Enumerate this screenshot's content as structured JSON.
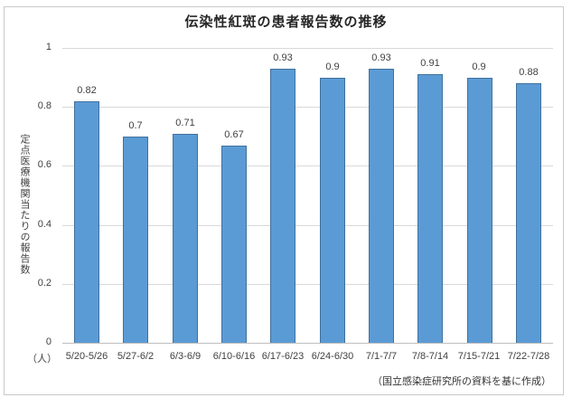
{
  "title": "伝染性紅斑の患者報告数の推移",
  "unit_label": "（人）",
  "footnote": "（国立感染症研究所の資料を基に作成）",
  "colors": {
    "bar_fill": "#5B9BD5",
    "bar_border": "#41719C",
    "gridline": "#D9D9D9",
    "axis_line": "#BFBFBF",
    "frame_border": "#C9C9C9",
    "title_text": "#262626",
    "label_text": "#404040"
  },
  "chart_data": {
    "type": "bar",
    "title": "伝染性紅斑の患者報告数の推移",
    "categories": [
      "5/20-5/26",
      "5/27-6/2",
      "6/3-6/9",
      "6/10-6/16",
      "6/17-6/23",
      "6/24-6/30",
      "7/1-7/7",
      "7/8-7/14",
      "7/15-7/21",
      "7/22-7/28"
    ],
    "values": [
      0.82,
      0.7,
      0.71,
      0.67,
      0.93,
      0.9,
      0.93,
      0.91,
      0.9,
      0.88
    ],
    "ylabel": "定点医療機関当たりの報告数",
    "xlabel": "（人）",
    "ylim": [
      0,
      1
    ],
    "yticks": [
      0,
      0.2,
      0.4,
      0.6,
      0.8,
      1
    ],
    "grid": true,
    "legend": false,
    "data_labels": true,
    "source_note": "（国立感染症研究所の資料を基に作成）"
  }
}
